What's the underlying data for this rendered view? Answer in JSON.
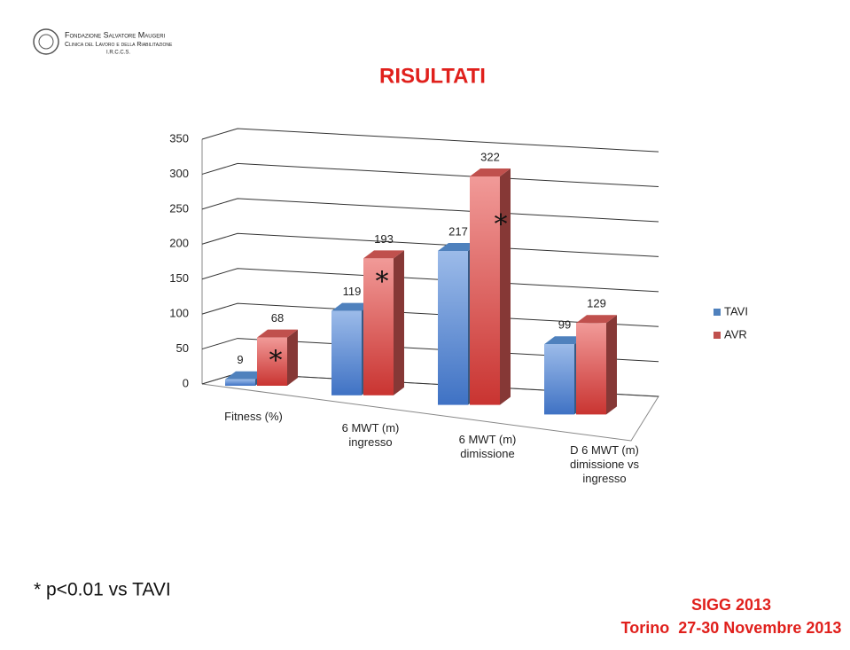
{
  "logo": {
    "line1": "Fondazione Salvatore Maugeri",
    "line2": "Clinica del Lavoro e della Riabilitazione",
    "line3": "I.R.C.C.S."
  },
  "chart_data": {
    "type": "bar3d",
    "title": "RISULTATI",
    "categories": [
      "Fitness (%)",
      "6 MWT (m) ingresso",
      "6 MWT (m) dimissione",
      "D 6 MWT (m) dimissione vs ingresso"
    ],
    "series": [
      {
        "name": "TAVI",
        "color": "#4f81bd",
        "values": [
          9,
          119,
          217,
          99
        ]
      },
      {
        "name": "AVR",
        "color": "#c0504d",
        "values": [
          68,
          193,
          322,
          129
        ]
      }
    ],
    "significance_marks": [
      "*",
      "*",
      "*",
      null
    ],
    "ylim": [
      0,
      350
    ],
    "yticks": [
      0,
      50,
      100,
      150,
      200,
      250,
      300,
      350
    ],
    "grid": true,
    "legend": "right"
  },
  "footnote": "* p<0.01 vs TAVI",
  "footer": {
    "line1": "SIGG 2013",
    "line2": "Torino  27-30 Novembre 2013"
  }
}
